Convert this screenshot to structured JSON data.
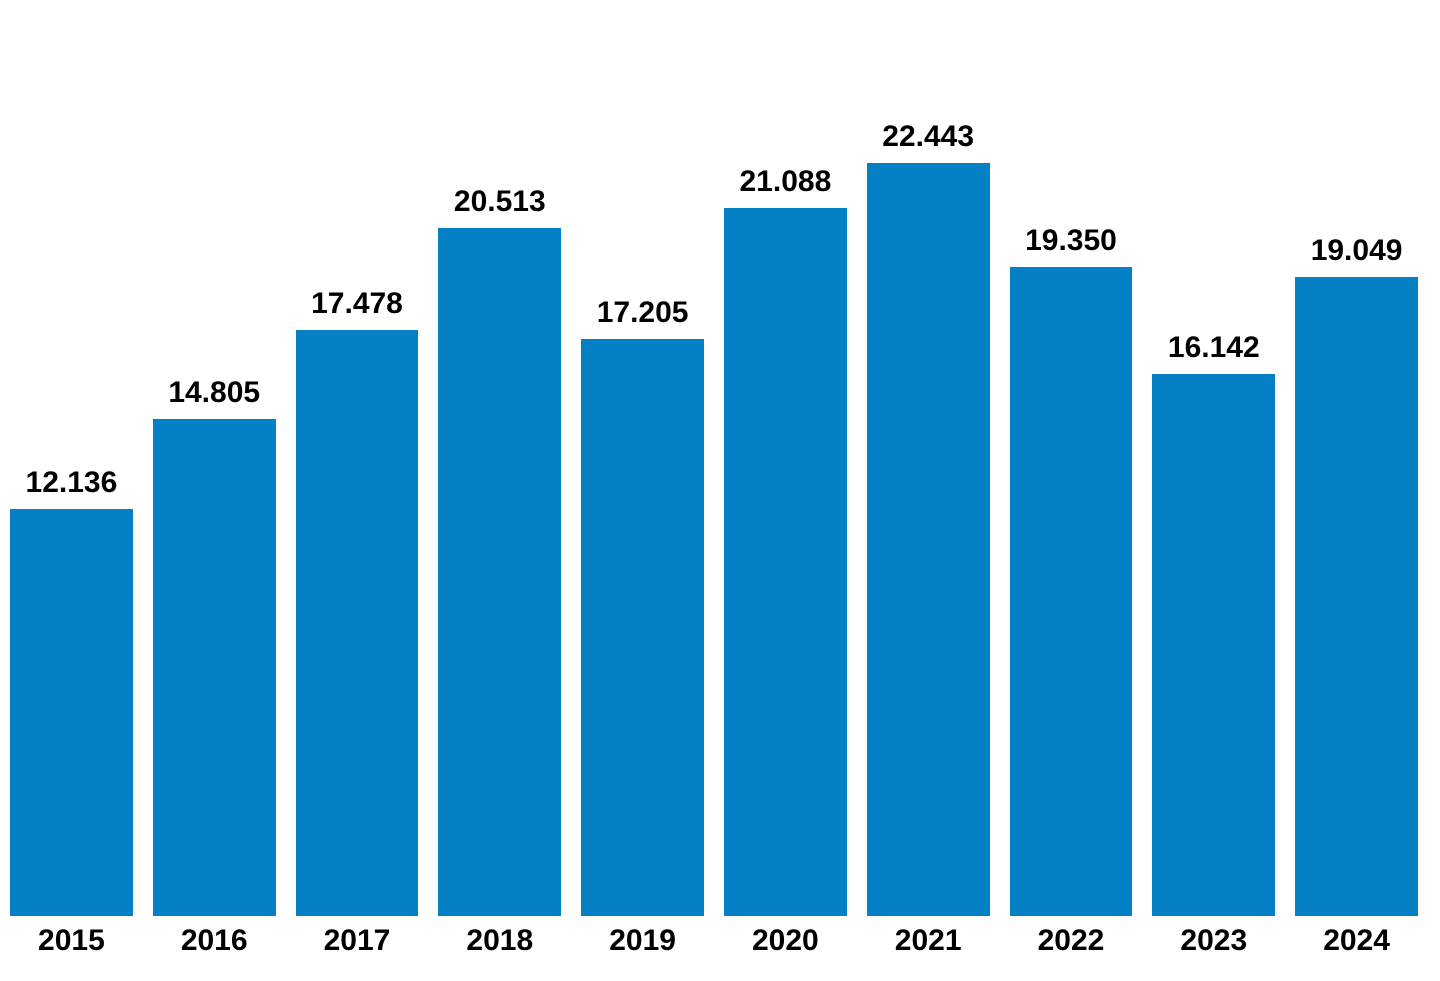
{
  "chart_data": {
    "type": "bar",
    "title": "",
    "xlabel": "",
    "ylabel": "",
    "categories": [
      "2015",
      "2016",
      "2017",
      "2018",
      "2019",
      "2020",
      "2021",
      "2022",
      "2023",
      "2024"
    ],
    "values": [
      12136,
      14805,
      17478,
      20513,
      17205,
      21088,
      22443,
      19350,
      16142,
      19049
    ],
    "value_labels": [
      "12.136",
      "14.805",
      "17.478",
      "20.513",
      "17.205",
      "21.088",
      "22.443",
      "19.350",
      "16.142",
      "19.049"
    ],
    "ylim": [
      0,
      22443
    ],
    "grid": false,
    "legend": false,
    "axis_lines": false,
    "data_label_position": "above-bars",
    "bar_color": "#0680C4",
    "label_color": "#000000",
    "background_color": "#FFFFFF"
  }
}
